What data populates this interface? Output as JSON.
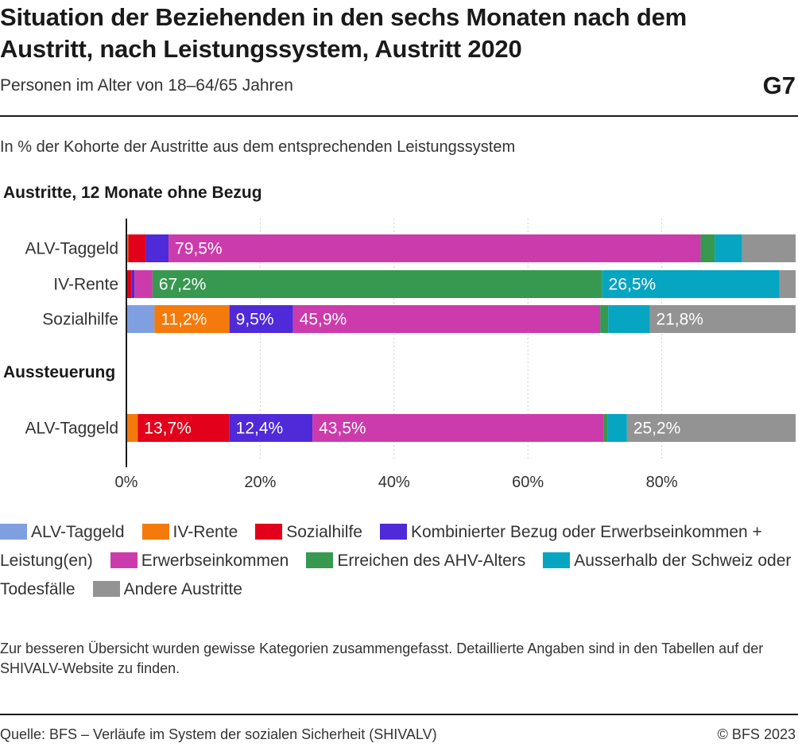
{
  "header": {
    "title": "Situation der Beziehenden in den sechs Monaten nach dem Austritt, nach Leistungssystem, Austritt 2020",
    "subtitle": "Personen im Alter von 18–64/65 Jahren",
    "chart_id": "G7",
    "unit_note": "In % der Kohorte der Austritte aus dem entsprechenden Leistungssystem"
  },
  "footer": {
    "note": "Zur besseren Übersicht wurden gewisse Kategorien zusammengefasst. Detaillierte Angaben sind in den Tabellen auf der SHIVALV-Website zu finden.",
    "source": "Quelle: BFS – Verläufe im System der sozialen Sicherheit (SHIVALV)",
    "copyright": "© BFS 2023"
  },
  "chart_data": {
    "type": "bar",
    "orientation": "horizontal",
    "stacked": true,
    "xlim": [
      0,
      100
    ],
    "x_ticks": [
      0,
      20,
      40,
      60,
      80
    ],
    "x_tick_labels": [
      "0%",
      "20%",
      "40%",
      "60%",
      "80%"
    ],
    "grid": true,
    "legend_position": "bottom",
    "series": [
      {
        "name": "ALV-Taggeld",
        "color": "#7f9fe0"
      },
      {
        "name": "IV-Rente",
        "color": "#f47a0c"
      },
      {
        "name": "Sozialhilfe",
        "color": "#e3001b"
      },
      {
        "name": "Kombinierter Bezug oder Erwerbseinkommen + Leistung(en)",
        "color": "#4f2ad9"
      },
      {
        "name": "Erwerbseinkommen",
        "color": "#cc3bab"
      },
      {
        "name": "Erreichen des AHV-Alters",
        "color": "#37984f"
      },
      {
        "name": "Ausserhalb der Schweiz oder Todesfälle",
        "color": "#06a5c1"
      },
      {
        "name": "Andere Austritte",
        "color": "#939393"
      }
    ],
    "groups": [
      {
        "title": "Austritte, 12 Monate ohne Bezug",
        "bars": [
          {
            "category": "ALV-Taggeld",
            "values": [
              0.0,
              0.3,
              2.6,
              3.4,
              79.5,
              2.1,
              4.1,
              8.0
            ],
            "labels": [
              "",
              "",
              "",
              "",
              "79,5%",
              "",
              "",
              ""
            ]
          },
          {
            "category": "IV-Rente",
            "values": [
              0.0,
              0.0,
              0.8,
              0.4,
              2.7,
              67.2,
              26.5,
              2.4
            ],
            "labels": [
              "",
              "",
              "",
              "",
              "",
              "67,2%",
              "26,5%",
              ""
            ]
          },
          {
            "category": "Sozialhilfe",
            "values": [
              4.2,
              11.2,
              0.0,
              9.5,
              45.9,
              1.2,
              6.2,
              21.8
            ],
            "labels": [
              "",
              "11,2%",
              "",
              "9,5%",
              "45,9%",
              "",
              "",
              "21,8%"
            ]
          }
        ]
      },
      {
        "title": "Aussteuerung",
        "bars": [
          {
            "category": "ALV-Taggeld",
            "values": [
              0.0,
              1.7,
              13.7,
              12.4,
              43.5,
              0.6,
              2.9,
              25.2
            ],
            "labels": [
              "",
              "",
              "13,7%",
              "12,4%",
              "43,5%",
              "",
              "",
              "25,2%"
            ]
          }
        ]
      }
    ]
  }
}
